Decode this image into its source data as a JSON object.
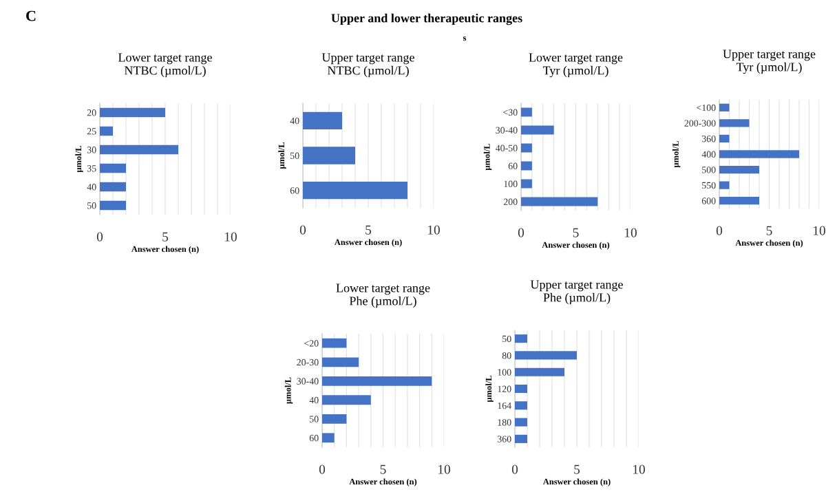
{
  "chart_data": [
    {
      "type": "other",
      "title": "Upper and lower therapeutic ranges",
      "annotations": [
        "C",
        "s"
      ]
    },
    {
      "type": "bar",
      "orientation": "horizontal",
      "title": "Lower target range\nNTBC (µmol/L)",
      "ylabel": "µmol/L",
      "xlabel": "Answer chosen (n)",
      "categories": [
        "20",
        "25",
        "30",
        "35",
        "40",
        "50"
      ],
      "values": [
        5,
        1,
        6,
        2,
        2,
        2
      ],
      "color": "#4472c4",
      "xlim": [
        0,
        10
      ],
      "xticks": [
        0,
        {
          "value": 1,
          "label": null
        },
        {
          "value": 2,
          "label": null
        },
        {
          "value": 3,
          "label": null
        },
        {
          "value": 4,
          "label": null
        },
        5,
        {
          "value": 6,
          "label": null
        },
        {
          "value": 7,
          "label": null
        },
        {
          "value": 8,
          "label": null
        },
        {
          "value": 9,
          "label": null
        },
        10
      ],
      "grid": "x"
    },
    {
      "type": "bar",
      "orientation": "horizontal",
      "title": "Upper target range\nNTBC (µmol/L)",
      "ylabel": "µmol/L",
      "xlabel": "Answer chosen (n)",
      "categories": [
        "40",
        "50",
        "60"
      ],
      "values": [
        3,
        4,
        8
      ],
      "color": "#4472c4",
      "xlim": [
        0,
        10
      ],
      "xticks": [
        0,
        {
          "value": 1,
          "label": null
        },
        {
          "value": 2,
          "label": null
        },
        {
          "value": 3,
          "label": null
        },
        {
          "value": 4,
          "label": null
        },
        5,
        {
          "value": 6,
          "label": null
        },
        {
          "value": 7,
          "label": null
        },
        {
          "value": 8,
          "label": null
        },
        {
          "value": 9,
          "label": null
        },
        10
      ],
      "grid": "x"
    },
    {
      "type": "bar",
      "orientation": "horizontal",
      "title": "Lower target range\nTyr (µmol/L)",
      "ylabel": "µmol/L",
      "xlabel": "Answer chosen (n)",
      "categories": [
        "<30",
        "30-40",
        "40-50",
        "60",
        "100",
        "200"
      ],
      "values": [
        1,
        3,
        1,
        1,
        1,
        7
      ],
      "color": "#4472c4",
      "xlim": [
        0,
        10
      ],
      "xticks": [
        0,
        {
          "value": 1,
          "label": null
        },
        {
          "value": 2,
          "label": null
        },
        {
          "value": 3,
          "label": null
        },
        {
          "value": 4,
          "label": null
        },
        5,
        {
          "value": 6,
          "label": null
        },
        {
          "value": 7,
          "label": null
        },
        {
          "value": 8,
          "label": null
        },
        {
          "value": 9,
          "label": null
        },
        10
      ],
      "grid": "x"
    },
    {
      "type": "bar",
      "orientation": "horizontal",
      "title": "Upper target range\nTyr (µmol/L)",
      "ylabel": "µmol/L",
      "xlabel": "Answer chosen (n)",
      "categories": [
        "<100",
        "200-300",
        "360",
        "400",
        "500",
        "550",
        "600"
      ],
      "values": [
        1,
        3,
        1,
        8,
        4,
        1,
        4
      ],
      "color": "#4472c4",
      "xlim": [
        0,
        10
      ],
      "xticks": [
        0,
        {
          "value": 1,
          "label": null
        },
        {
          "value": 2,
          "label": null
        },
        {
          "value": 3,
          "label": null
        },
        {
          "value": 4,
          "label": null
        },
        5,
        {
          "value": 6,
          "label": null
        },
        {
          "value": 7,
          "label": null
        },
        {
          "value": 8,
          "label": null
        },
        {
          "value": 9,
          "label": null
        },
        10
      ],
      "grid": "x"
    },
    {
      "type": "bar",
      "orientation": "horizontal",
      "title": "Lower target range\nPhe (µmol/L)",
      "ylabel": "µmol/L",
      "xlabel": "Answer chosen (n)",
      "categories": [
        "<20",
        "20-30",
        "30-40",
        "40",
        "50",
        "60"
      ],
      "values": [
        2,
        3,
        9,
        4,
        2,
        1
      ],
      "color": "#4472c4",
      "xlim": [
        0,
        10
      ],
      "xticks": [
        0,
        {
          "value": 1,
          "label": null
        },
        {
          "value": 2,
          "label": null
        },
        {
          "value": 3,
          "label": null
        },
        {
          "value": 4,
          "label": null
        },
        5,
        {
          "value": 6,
          "label": null
        },
        {
          "value": 7,
          "label": null
        },
        {
          "value": 8,
          "label": null
        },
        {
          "value": 9,
          "label": null
        },
        10
      ],
      "grid": "x"
    },
    {
      "type": "bar",
      "orientation": "horizontal",
      "title": "Upper target range\nPhe (µmol/L)",
      "ylabel": "µmol/L",
      "xlabel": "Answer chosen (n)",
      "categories": [
        "50",
        "80",
        "100",
        "120",
        "164",
        "180",
        "360"
      ],
      "values": [
        1,
        5,
        4,
        1,
        1,
        1,
        1
      ],
      "color": "#4472c4",
      "xlim": [
        0,
        10
      ],
      "xticks": [
        0,
        {
          "value": 1,
          "label": null
        },
        {
          "value": 2,
          "label": null
        },
        {
          "value": 3,
          "label": null
        },
        {
          "value": 4,
          "label": null
        },
        5,
        {
          "value": 6,
          "label": null
        },
        {
          "value": 7,
          "label": null
        },
        {
          "value": 8,
          "label": null
        },
        {
          "value": 9,
          "label": null
        },
        10
      ],
      "grid": "x"
    }
  ]
}
